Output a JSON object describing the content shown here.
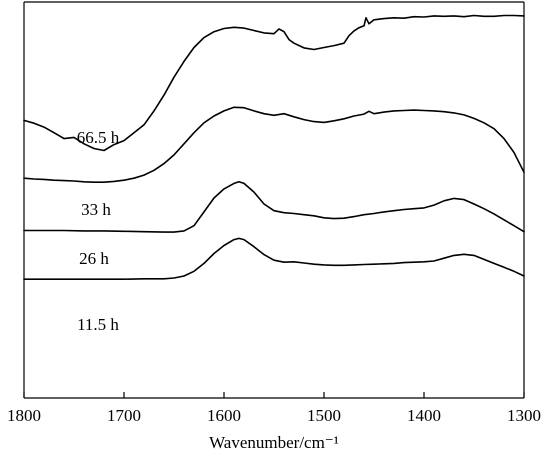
{
  "chart_data": {
    "type": "line",
    "title": "",
    "xlabel": "Wavenumber/cm⁻¹",
    "ylabel": "",
    "xlim": [
      1800,
      1300
    ],
    "x_reversed": true,
    "y_ticks_shown": false,
    "grid": false,
    "legend": "none",
    "x_ticks": [
      1800,
      1700,
      1600,
      1500,
      1400,
      1300
    ],
    "y_range": [
      0,
      100
    ],
    "colors": {
      "line": "#000000",
      "axis": "#000000",
      "background": "#ffffff"
    },
    "series": [
      {
        "name": "66.5 h",
        "x": [
          1800,
          1790,
          1780,
          1770,
          1760,
          1750,
          1740,
          1730,
          1720,
          1710,
          1700,
          1690,
          1680,
          1670,
          1660,
          1650,
          1640,
          1630,
          1620,
          1610,
          1600,
          1590,
          1580,
          1570,
          1560,
          1550,
          1545,
          1540,
          1535,
          1530,
          1520,
          1510,
          1500,
          1490,
          1480,
          1475,
          1470,
          1465,
          1460,
          1458,
          1455,
          1450,
          1440,
          1430,
          1420,
          1410,
          1400,
          1390,
          1380,
          1370,
          1360,
          1350,
          1340,
          1330,
          1320,
          1310,
          1300
        ],
        "y": [
          70.1,
          69.4,
          68.4,
          67.0,
          65.5,
          65.8,
          64.2,
          63.0,
          62.5,
          64.0,
          65.0,
          67.0,
          69.0,
          72.5,
          76.5,
          81.0,
          85.0,
          88.5,
          91.0,
          92.5,
          93.3,
          93.6,
          93.4,
          92.8,
          92.2,
          92.0,
          93.2,
          92.5,
          90.5,
          89.6,
          88.4,
          88.0,
          88.5,
          89.0,
          89.6,
          91.5,
          92.7,
          93.5,
          94.0,
          96.0,
          94.5,
          95.5,
          95.8,
          96.0,
          95.9,
          96.3,
          96.2,
          96.5,
          96.4,
          96.5,
          96.3,
          96.6,
          96.4,
          96.4,
          96.6,
          96.6,
          96.5
        ]
      },
      {
        "name": "33 h",
        "x": [
          1800,
          1790,
          1780,
          1770,
          1760,
          1750,
          1740,
          1730,
          1720,
          1710,
          1700,
          1690,
          1680,
          1670,
          1660,
          1650,
          1640,
          1630,
          1620,
          1610,
          1600,
          1590,
          1580,
          1570,
          1560,
          1550,
          1540,
          1530,
          1520,
          1510,
          1500,
          1490,
          1480,
          1470,
          1460,
          1455,
          1450,
          1440,
          1430,
          1420,
          1410,
          1400,
          1390,
          1380,
          1370,
          1360,
          1350,
          1340,
          1330,
          1320,
          1310,
          1300
        ],
        "y": [
          55.5,
          55.3,
          55.2,
          55.0,
          54.9,
          54.8,
          54.6,
          54.5,
          54.5,
          54.7,
          55.0,
          55.5,
          56.3,
          57.5,
          59.2,
          61.4,
          64.2,
          67.0,
          69.5,
          71.2,
          72.5,
          73.4,
          73.3,
          72.5,
          71.8,
          71.4,
          71.8,
          71.0,
          70.3,
          69.8,
          69.6,
          70.0,
          70.5,
          71.2,
          71.7,
          72.4,
          71.8,
          72.2,
          72.5,
          72.6,
          72.7,
          72.6,
          72.5,
          72.3,
          72.0,
          71.5,
          70.6,
          69.5,
          68.0,
          65.5,
          62.0,
          57.0
        ]
      },
      {
        "name": "26 h",
        "x": [
          1800,
          1780,
          1760,
          1740,
          1720,
          1700,
          1680,
          1660,
          1650,
          1640,
          1630,
          1620,
          1610,
          1600,
          1590,
          1585,
          1580,
          1570,
          1560,
          1550,
          1540,
          1530,
          1520,
          1510,
          1500,
          1490,
          1480,
          1470,
          1460,
          1450,
          1440,
          1430,
          1420,
          1410,
          1400,
          1390,
          1380,
          1370,
          1360,
          1350,
          1340,
          1330,
          1320,
          1310,
          1300
        ],
        "y": [
          42.3,
          42.3,
          42.3,
          42.2,
          42.2,
          42.1,
          42.0,
          41.9,
          41.9,
          42.2,
          43.5,
          47.0,
          50.5,
          52.8,
          54.2,
          54.6,
          54.2,
          52.0,
          49.0,
          47.3,
          46.8,
          46.6,
          46.3,
          46.0,
          45.5,
          45.3,
          45.4,
          45.8,
          46.3,
          46.6,
          47.0,
          47.3,
          47.6,
          47.8,
          48.0,
          48.7,
          49.8,
          50.4,
          50.1,
          49.0,
          47.8,
          46.5,
          45.0,
          43.5,
          42.0
        ]
      },
      {
        "name": "11.5 h",
        "x": [
          1800,
          1780,
          1760,
          1740,
          1720,
          1700,
          1680,
          1660,
          1650,
          1640,
          1630,
          1620,
          1610,
          1600,
          1590,
          1585,
          1580,
          1570,
          1560,
          1550,
          1540,
          1530,
          1520,
          1510,
          1500,
          1490,
          1480,
          1470,
          1460,
          1450,
          1440,
          1430,
          1420,
          1410,
          1400,
          1390,
          1380,
          1370,
          1360,
          1350,
          1340,
          1330,
          1320,
          1310,
          1300
        ],
        "y": [
          30.0,
          30.0,
          30.0,
          30.0,
          30.0,
          30.0,
          30.1,
          30.1,
          30.3,
          30.8,
          32.0,
          34.0,
          36.5,
          38.5,
          40.0,
          40.3,
          40.0,
          38.2,
          36.2,
          34.8,
          34.3,
          34.4,
          34.1,
          33.8,
          33.6,
          33.5,
          33.5,
          33.6,
          33.7,
          33.8,
          33.9,
          34.0,
          34.2,
          34.3,
          34.4,
          34.6,
          35.3,
          36.0,
          36.3,
          36.0,
          35.0,
          34.0,
          33.0,
          32.0,
          30.8
        ]
      }
    ]
  }
}
